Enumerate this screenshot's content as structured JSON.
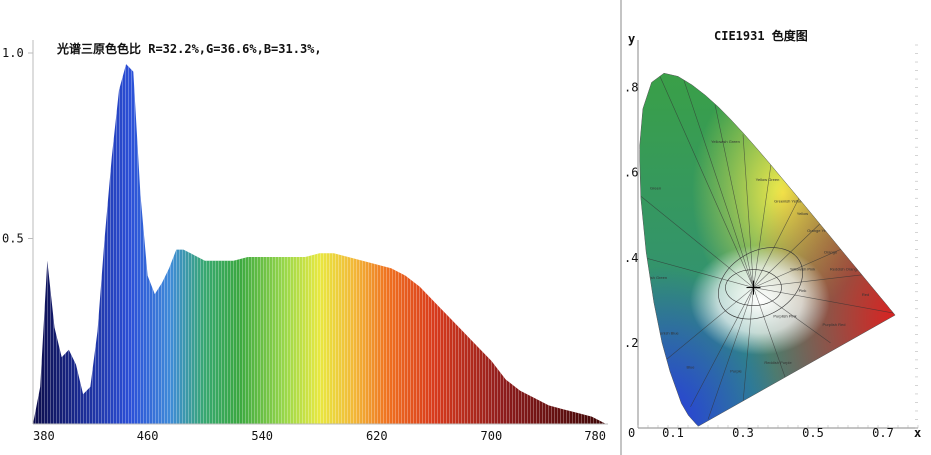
{
  "colors": {
    "panel_border": "#888888",
    "axis": "#bbbbbb"
  },
  "chart_data": [
    {
      "type": "area",
      "title": "光谱三原色色比  R=32.2%,G=36.6%,B=31.3%,",
      "xlabel": "",
      "ylabel": "",
      "xlim": [
        380,
        780
      ],
      "ylim": [
        0,
        1.0
      ],
      "x_ticks": [
        "380",
        "460",
        "540",
        "620",
        "700",
        "780"
      ],
      "y_ticks": [
        "0.5",
        "1.0"
      ],
      "x": [
        380,
        385,
        390,
        395,
        400,
        405,
        410,
        415,
        420,
        425,
        430,
        435,
        440,
        445,
        450,
        455,
        460,
        465,
        470,
        475,
        480,
        485,
        490,
        495,
        500,
        505,
        510,
        520,
        530,
        540,
        550,
        560,
        570,
        580,
        590,
        600,
        610,
        620,
        630,
        640,
        650,
        660,
        670,
        680,
        690,
        700,
        710,
        720,
        730,
        740,
        750,
        760,
        770,
        775,
        780
      ],
      "values": [
        0.0,
        0.1,
        0.44,
        0.26,
        0.18,
        0.2,
        0.16,
        0.08,
        0.1,
        0.25,
        0.5,
        0.72,
        0.9,
        0.97,
        0.95,
        0.62,
        0.4,
        0.35,
        0.38,
        0.42,
        0.47,
        0.47,
        0.46,
        0.45,
        0.44,
        0.44,
        0.44,
        0.44,
        0.45,
        0.45,
        0.45,
        0.45,
        0.45,
        0.46,
        0.46,
        0.45,
        0.44,
        0.43,
        0.42,
        0.4,
        0.37,
        0.33,
        0.29,
        0.25,
        0.21,
        0.17,
        0.12,
        0.09,
        0.07,
        0.05,
        0.04,
        0.03,
        0.02,
        0.01,
        0.0
      ]
    },
    {
      "type": "scatter",
      "title": "CIE1931 色度图",
      "xlabel": "x",
      "ylabel": "y",
      "xlim": [
        0,
        0.8
      ],
      "ylim": [
        0,
        0.9
      ],
      "x_ticks": [
        "0",
        "0.1",
        "0.3",
        "0.5",
        "0.7"
      ],
      "y_ticks": [
        ".2",
        ".4",
        ".6",
        ".8"
      ],
      "point": {
        "x": 0.33,
        "y": 0.33
      },
      "regions": [
        "Yellowish Green",
        "Green",
        "Yellow Green",
        "Greenish Yellow",
        "Yellow",
        "Orange Yellow",
        "Orange",
        "Reddish Orange",
        "Yellowish Pink",
        "Red",
        "Pink",
        "Bluish Green",
        "Greenish Blue",
        "Purplish Pink",
        "Purplish Red",
        "Reddish Purple",
        "Purple",
        "Blue"
      ]
    }
  ]
}
